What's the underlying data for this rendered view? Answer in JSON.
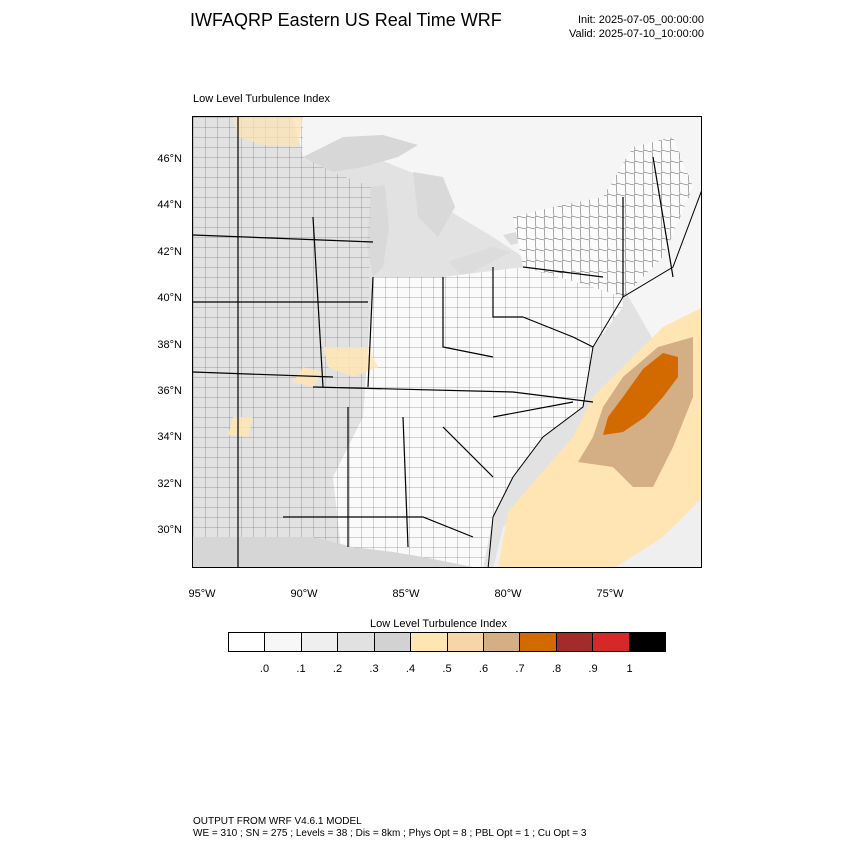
{
  "header": {
    "title": "IWFAQRP Eastern US Real Time WRF",
    "init": "Init: 2025-07-05_00:00:00",
    "valid": "Valid: 2025-07-10_10:00:00"
  },
  "map": {
    "subtitle": "Low Level Turbulence Index",
    "lat_labels": [
      "46°N",
      "44°N",
      "42°N",
      "40°N",
      "38°N",
      "36°N",
      "34°N",
      "32°N",
      "30°N"
    ],
    "lon_labels": [
      "95°W",
      "90°W",
      "85°W",
      "80°W",
      "75°W"
    ],
    "colors": {
      "land_light": "#e6e6e6",
      "land_white": "#ffffff",
      "water": "#f4f4f4",
      "county_line": "#444444",
      "state_line": "#000000"
    }
  },
  "colorbar": {
    "title": "Low Level Turbulence Index",
    "labels": [
      ".0",
      ".1",
      ".2",
      ".3",
      ".4",
      ".5",
      ".6",
      ".7",
      ".8",
      ".9",
      "1"
    ],
    "colors": [
      "#ffffff",
      "#f7f7f7",
      "#efefef",
      "#e1e1e1",
      "#d2d2d2",
      "#ffe5b4",
      "#f6d6a8",
      "#d4ae84",
      "#d26a00",
      "#a52a2a",
      "#d62828",
      "#000000"
    ]
  },
  "footer": {
    "line1": "OUTPUT FROM WRF V4.6.1 MODEL",
    "line2": "WE = 310 ; SN = 275 ; Levels = 38 ; Dis = 8km ; Phys Opt = 8 ; PBL Opt = 1 ; Cu Opt = 3"
  }
}
